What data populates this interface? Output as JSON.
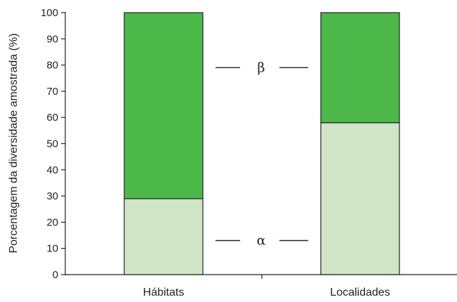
{
  "chart_data": {
    "type": "bar",
    "stacked": true,
    "categories": [
      "Hábitats",
      "Localidades"
    ],
    "series": [
      {
        "name": "α",
        "values": [
          29,
          58
        ],
        "color": "#cfe5c6"
      },
      {
        "name": "β",
        "values": [
          71,
          42
        ],
        "color": "#4bb849"
      }
    ],
    "ylabel": "Porcentagem da diversidade amostrada (%)",
    "xlabel": "",
    "ylim": [
      0,
      100
    ],
    "yticks": [
      "0",
      "10",
      "20",
      "30",
      "40",
      "50",
      "60",
      "70",
      "80",
      "90",
      "100"
    ],
    "grid": false,
    "legend": "inline between bars"
  }
}
